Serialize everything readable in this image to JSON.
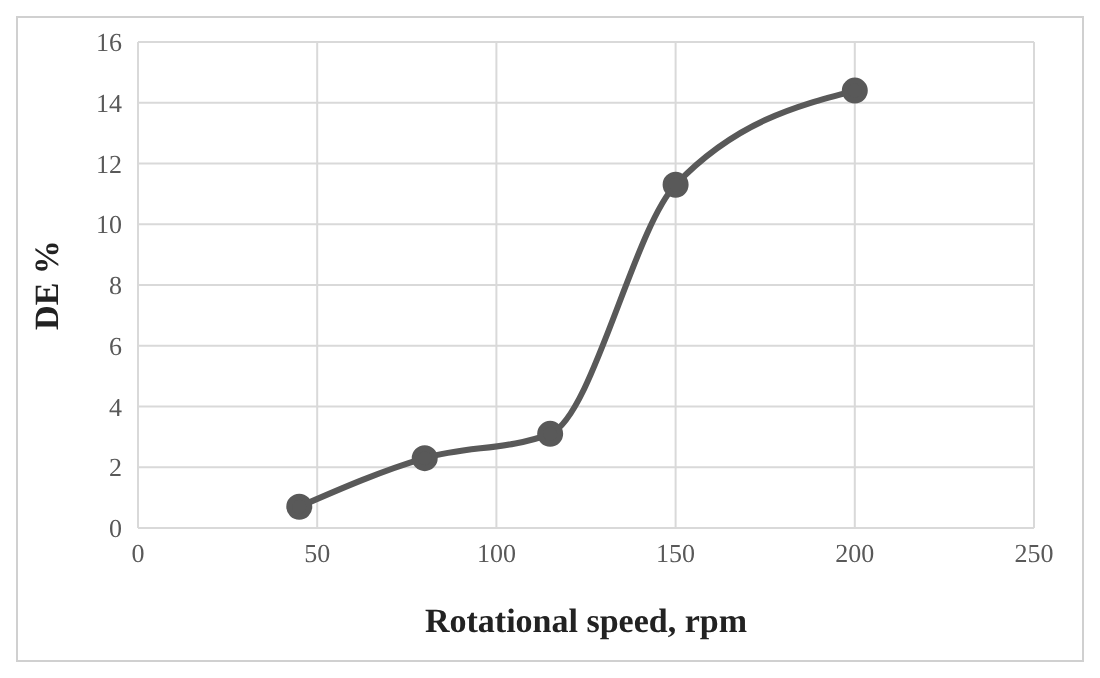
{
  "chart_data": {
    "type": "line",
    "xlabel": "Rotational speed, rpm",
    "ylabel": "DE %",
    "x": [
      45,
      80,
      115,
      150,
      200
    ],
    "series": [
      {
        "color": "#595959",
        "values": [
          0.7,
          2.3,
          3.1,
          11.3,
          14.4
        ]
      }
    ],
    "xlim": [
      0,
      250
    ],
    "xticks": [
      0,
      50,
      100,
      150,
      200,
      250
    ],
    "ylim": [
      0,
      16
    ],
    "yticks": [
      0,
      2,
      4,
      6,
      8,
      10,
      12,
      14,
      16
    ],
    "grid": true,
    "marker": "circle",
    "line_style": "solid"
  }
}
